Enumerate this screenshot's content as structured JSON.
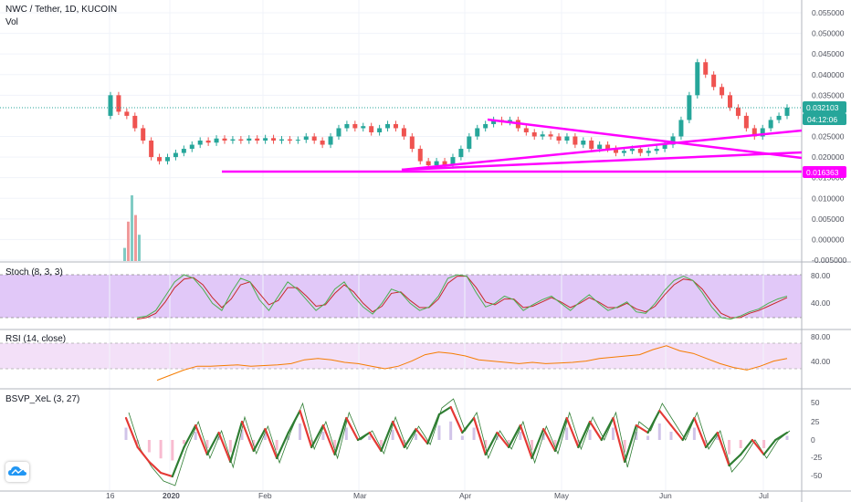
{
  "header": {
    "symbol_title": "NWC / Tether, 1D, KUCOIN",
    "volume_label": "Vol"
  },
  "price_axis": {
    "ticks": [
      "0.055000",
      "0.050000",
      "0.045000",
      "0.040000",
      "0.035000",
      "0.025000",
      "0.020000",
      "0.015000",
      "0.010000",
      "0.005000",
      "0.000000",
      "-0.005000"
    ],
    "last_price": "0.032103",
    "countdown": "04:12:06",
    "line_level": "0.016363"
  },
  "time_axis": {
    "labels": [
      "16",
      "2020",
      "Feb",
      "Mar",
      "Apr",
      "May",
      "Jun",
      "Jul"
    ]
  },
  "indicators": {
    "stoch": {
      "title": "Stoch (8, 3, 3)",
      "ticks": [
        "80.00",
        "40.00"
      ]
    },
    "rsi": {
      "title": "RSI (14, close)",
      "ticks": [
        "80.00",
        "40.00"
      ]
    },
    "bsvp": {
      "title": "BSVP_XeL (3, 27)",
      "ticks": [
        "50",
        "25",
        "0",
        "-25",
        "-50"
      ]
    }
  },
  "colors": {
    "up": "#26a69a",
    "down": "#ef5350",
    "trendline": "#ff00ff",
    "last_price_bg": "#26a69a",
    "stoch_band": "#e1c8f8",
    "rsi_band": "#f3e0f8",
    "stoch_k": "#4caf50",
    "stoch_d": "#c62828",
    "rsi_line": "#f57c00",
    "bsvp_green": "#2e7d32",
    "bsvp_red": "#e53935"
  },
  "chart_data": {
    "type": "candlestick",
    "title": "NWC / Tether, 1D, KUCOIN",
    "ylim": [
      -0.005,
      0.057
    ],
    "price_series": [
      [
        0.03,
        0.035
      ],
      [
        0.035,
        0.031
      ],
      [
        0.031,
        0.03
      ],
      [
        0.03,
        0.027
      ],
      [
        0.027,
        0.024
      ],
      [
        0.024,
        0.02
      ],
      [
        0.02,
        0.019
      ],
      [
        0.019,
        0.02
      ],
      [
        0.02,
        0.021
      ],
      [
        0.021,
        0.022
      ],
      [
        0.022,
        0.023
      ],
      [
        0.023,
        0.024
      ],
      [
        0.024,
        0.0235
      ],
      [
        0.0235,
        0.0245
      ],
      [
        0.0245,
        0.024
      ],
      [
        0.024,
        0.0243
      ],
      [
        0.0243,
        0.024
      ],
      [
        0.024,
        0.0245
      ],
      [
        0.0245,
        0.024
      ],
      [
        0.024,
        0.0246
      ],
      [
        0.0246,
        0.024
      ],
      [
        0.024,
        0.0243
      ],
      [
        0.0243,
        0.024
      ],
      [
        0.024,
        0.0242
      ],
      [
        0.0242,
        0.025
      ],
      [
        0.025,
        0.024
      ],
      [
        0.024,
        0.023
      ],
      [
        0.023,
        0.025
      ],
      [
        0.025,
        0.027
      ],
      [
        0.027,
        0.028
      ],
      [
        0.028,
        0.027
      ],
      [
        0.027,
        0.0275
      ],
      [
        0.0275,
        0.026
      ],
      [
        0.026,
        0.027
      ],
      [
        0.027,
        0.028
      ],
      [
        0.028,
        0.027
      ],
      [
        0.027,
        0.025
      ],
      [
        0.025,
        0.022
      ],
      [
        0.022,
        0.019
      ],
      [
        0.019,
        0.018
      ],
      [
        0.018,
        0.019
      ],
      [
        0.019,
        0.018
      ],
      [
        0.018,
        0.02
      ],
      [
        0.02,
        0.022
      ],
      [
        0.022,
        0.025
      ],
      [
        0.025,
        0.027
      ],
      [
        0.027,
        0.028
      ],
      [
        0.028,
        0.029
      ],
      [
        0.029,
        0.0285
      ],
      [
        0.0285,
        0.029
      ],
      [
        0.029,
        0.027
      ],
      [
        0.027,
        0.026
      ],
      [
        0.026,
        0.025
      ],
      [
        0.025,
        0.0255
      ],
      [
        0.0255,
        0.025
      ],
      [
        0.025,
        0.024
      ],
      [
        0.024,
        0.025
      ],
      [
        0.025,
        0.023
      ],
      [
        0.023,
        0.024
      ],
      [
        0.024,
        0.022
      ],
      [
        0.022,
        0.023
      ],
      [
        0.023,
        0.022
      ],
      [
        0.022,
        0.021
      ],
      [
        0.021,
        0.0215
      ],
      [
        0.0215,
        0.022
      ],
      [
        0.022,
        0.021
      ],
      [
        0.021,
        0.0215
      ],
      [
        0.0215,
        0.022
      ],
      [
        0.022,
        0.023
      ],
      [
        0.023,
        0.025
      ],
      [
        0.025,
        0.029
      ],
      [
        0.029,
        0.035
      ],
      [
        0.035,
        0.043
      ],
      [
        0.043,
        0.04
      ],
      [
        0.04,
        0.037
      ],
      [
        0.037,
        0.035
      ],
      [
        0.035,
        0.032
      ],
      [
        0.032,
        0.03
      ],
      [
        0.03,
        0.027
      ],
      [
        0.027,
        0.025
      ],
      [
        0.025,
        0.027
      ],
      [
        0.027,
        0.029
      ],
      [
        0.029,
        0.03
      ],
      [
        0.03,
        0.032
      ]
    ],
    "trendlines": [
      {
        "from": [
          "Mar 29",
          0.0289
        ],
        "to": [
          "Jul 18",
          0.0195
        ]
      },
      {
        "from": [
          "Mar 15",
          0.0167
        ],
        "to": [
          "Jul 18",
          0.0265
        ]
      },
      {
        "from": [
          "Mar 15",
          0.0167
        ],
        "to": [
          "Jul 18",
          0.021
        ]
      },
      {
        "from": [
          "Dec 31",
          0.016363
        ],
        "to": [
          "Jul 18",
          0.016363
        ]
      }
    ],
    "volume_spikes": [
      0.2,
      0.6,
      1.0,
      0.7,
      0.4
    ],
    "stoch_k": [
      20,
      22,
      30,
      50,
      70,
      80,
      75,
      60,
      40,
      30,
      55,
      75,
      70,
      45,
      30,
      50,
      70,
      60,
      45,
      30,
      40,
      60,
      70,
      50,
      35,
      25,
      40,
      60,
      55,
      40,
      30,
      35,
      50,
      75,
      80,
      78,
      55,
      35,
      40,
      50,
      45,
      30,
      38,
      45,
      50,
      40,
      30,
      42,
      52,
      40,
      30,
      35,
      42,
      28,
      26,
      40,
      58,
      72,
      78,
      72,
      55,
      35,
      20,
      18,
      22,
      28,
      32,
      40,
      46,
      50
    ],
    "stoch_d": [
      18,
      20,
      26,
      42,
      62,
      74,
      76,
      66,
      48,
      34,
      46,
      66,
      70,
      54,
      38,
      44,
      62,
      62,
      50,
      36,
      38,
      54,
      66,
      56,
      40,
      28,
      36,
      54,
      56,
      44,
      34,
      34,
      46,
      68,
      78,
      78,
      62,
      42,
      38,
      46,
      46,
      34,
      36,
      42,
      48,
      42,
      34,
      40,
      48,
      42,
      34,
      34,
      40,
      32,
      28,
      36,
      52,
      66,
      74,
      72,
      60,
      42,
      26,
      20,
      20,
      26,
      30,
      36,
      42,
      48
    ],
    "rsi": [
      22,
      30,
      38,
      44,
      44,
      45,
      46,
      44,
      45,
      46,
      48,
      54,
      56,
      54,
      50,
      48,
      44,
      40,
      44,
      52,
      62,
      66,
      64,
      60,
      54,
      52,
      50,
      48,
      50,
      48,
      49,
      50,
      52,
      56,
      58,
      60,
      62,
      70,
      76,
      68,
      64,
      56,
      48,
      42,
      38,
      44,
      52,
      56
    ],
    "bsvp_main": [
      30,
      -10,
      -30,
      -45,
      -50,
      -10,
      20,
      -20,
      10,
      -30,
      25,
      -15,
      15,
      -25,
      10,
      40,
      -10,
      20,
      -20,
      30,
      0,
      10,
      -15,
      25,
      -10,
      15,
      -5,
      35,
      45,
      10,
      30,
      -20,
      10,
      -10,
      20,
      -25,
      15,
      -15,
      30,
      -10,
      25,
      0,
      30,
      -30,
      20,
      10,
      40,
      20,
      0,
      30,
      -10,
      10,
      -35,
      -20,
      0,
      -20,
      0,
      10
    ]
  }
}
